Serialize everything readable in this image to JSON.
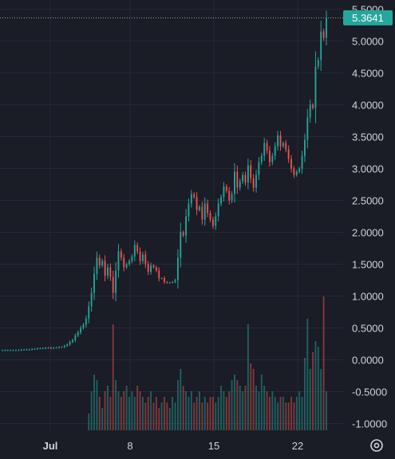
{
  "chart_data": {
    "type": "candlestick",
    "title": "",
    "xlabel": "",
    "ylabel": "",
    "ylim": [
      -1.1,
      5.5
    ],
    "grid": true,
    "price_axis_labels": [
      "5.5000",
      "5.0000",
      "4.5000",
      "4.0000",
      "3.5000",
      "3.0000",
      "2.5000",
      "2.0000",
      "1.5000",
      "1.0000",
      "0.5000",
      "0.0000",
      "-0.5000",
      "-1.0000"
    ],
    "price_axis_values": [
      5.5,
      5.0,
      4.5,
      4.0,
      3.5,
      3.0,
      2.5,
      2.0,
      1.5,
      1.0,
      0.5,
      0.0,
      -0.5,
      -1.0
    ],
    "x_axis_labels": [
      "Jul",
      "8",
      "15",
      "22"
    ],
    "last_price": 5.3641,
    "last_price_label": "5.3641",
    "colors": {
      "up": "#26a69a",
      "down": "#ef5350",
      "last_price_tag": "#26a69a",
      "background": "#1a1c26",
      "grid": "#262a36"
    },
    "close_series": [
      0.15,
      0.15,
      0.15,
      0.15,
      0.15,
      0.15,
      0.15,
      0.16,
      0.16,
      0.16,
      0.16,
      0.17,
      0.17,
      0.18,
      0.18,
      0.18,
      0.19,
      0.19,
      0.18,
      0.19,
      0.19,
      0.2,
      0.2,
      0.22,
      0.24,
      0.28,
      0.31,
      0.38,
      0.43,
      0.5,
      0.55,
      0.65,
      0.84,
      1.05,
      1.35,
      1.6,
      1.48,
      1.55,
      1.32,
      1.45,
      1.3,
      1.05,
      1.4,
      1.7,
      1.6,
      1.45,
      1.5,
      1.55,
      1.62,
      1.8,
      1.7,
      1.55,
      1.65,
      1.5,
      1.38,
      1.48,
      1.45,
      1.4,
      1.28,
      1.28,
      1.22,
      1.21,
      1.21,
      1.22,
      1.25,
      1.6,
      2.0,
      1.95,
      2.25,
      2.45,
      2.6,
      2.55,
      2.35,
      2.4,
      2.2,
      2.45,
      2.3,
      2.2,
      2.1,
      2.25,
      2.45,
      2.55,
      2.72,
      2.65,
      2.5,
      2.6,
      2.95,
      2.7,
      2.8,
      2.9,
      2.78,
      3.05,
      2.85,
      2.7,
      2.9,
      3.1,
      3.2,
      3.4,
      3.28,
      3.1,
      3.2,
      3.35,
      3.52,
      3.35,
      3.4,
      3.3,
      3.15,
      3.0,
      2.9,
      2.95,
      3.0,
      3.2,
      3.45,
      3.8,
      4.0,
      3.95,
      4.6,
      4.7,
      5.15,
      5.05,
      5.36
    ],
    "volume_series": [
      0,
      0,
      0,
      0,
      0,
      0,
      0,
      0,
      0,
      0,
      0,
      0,
      0,
      0,
      0,
      0,
      0,
      0,
      0,
      0,
      0,
      0,
      0,
      0,
      0,
      0,
      0,
      0,
      0,
      0,
      0,
      0,
      0.15,
      0.35,
      0.5,
      0.45,
      0.3,
      0.2,
      0.35,
      0.4,
      0.3,
      0.95,
      0.45,
      0.35,
      0.3,
      0.35,
      0.4,
      0.3,
      0.35,
      0.3,
      0.4,
      0.35,
      0.3,
      0.25,
      0.3,
      0.35,
      0.25,
      0.3,
      0.2,
      0.25,
      0.3,
      0.25,
      0.2,
      0.3,
      0.25,
      0.45,
      0.55,
      0.4,
      0.35,
      0.3,
      0.35,
      0.25,
      0.3,
      0.35,
      0.25,
      0.3,
      0.25,
      0.3,
      0.3,
      0.25,
      0.3,
      0.4,
      0.35,
      0.3,
      0.35,
      0.45,
      0.5,
      0.45,
      0.4,
      0.35,
      0.4,
      0.95,
      0.6,
      0.55,
      0.4,
      0.35,
      0.5,
      0.4,
      0.35,
      0.3,
      0.35,
      0.3,
      0.25,
      0.3,
      0.3,
      0.25,
      0.25,
      0.3,
      0.25,
      0.3,
      0.35,
      0.3,
      0.65,
      1.0,
      0.55,
      0.7,
      0.8,
      0.75,
      0.55,
      1.2,
      0.35
    ]
  },
  "ui": {
    "settings_icon": "gear-icon",
    "crosshair_line": "dotted"
  }
}
